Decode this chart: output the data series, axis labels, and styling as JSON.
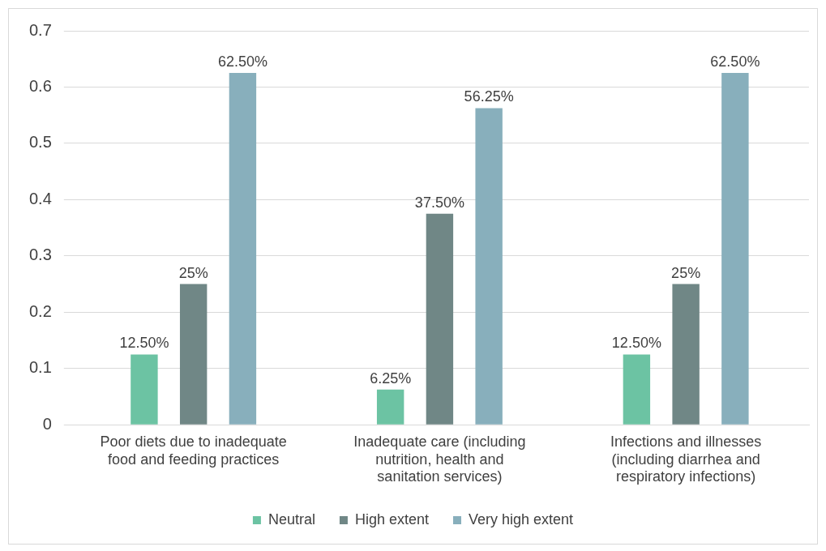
{
  "chart_data": {
    "type": "bar",
    "categories": [
      "Poor diets due to inadequate food and feeding practices",
      "Inadequate care (including nutrition, health and sanitation services)",
      "Infections and illnesses (including diarrhea and respiratory infections)"
    ],
    "series": [
      {
        "name": "Neutral",
        "color": "#6cc3a3",
        "values": [
          0.125,
          0.0625,
          0.125
        ],
        "value_labels": [
          "12.50%",
          "6.25%",
          "12.50%"
        ]
      },
      {
        "name": "High extent",
        "color": "#708786",
        "values": [
          0.25,
          0.375,
          0.25
        ],
        "value_labels": [
          "25%",
          "37.50%",
          "25%"
        ]
      },
      {
        "name": "Very high extent",
        "color": "#88afbc",
        "values": [
          0.625,
          0.5625,
          0.625
        ],
        "value_labels": [
          "62.50%",
          "56.25%",
          "62.50%"
        ]
      }
    ],
    "ylim": [
      0,
      0.7
    ],
    "yticks": [
      0,
      0.1,
      0.2,
      0.3,
      0.4,
      0.5,
      0.6,
      0.7
    ],
    "grid": "y",
    "legend": "bottom"
  }
}
